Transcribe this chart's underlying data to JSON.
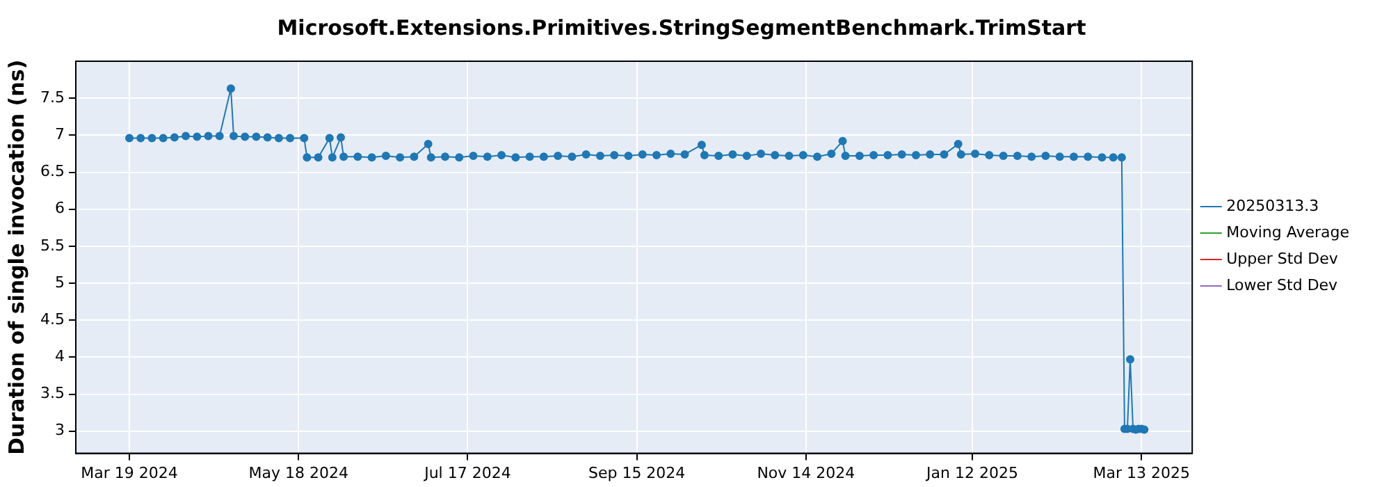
{
  "chart_data": {
    "type": "line",
    "title": "Microsoft.Extensions.Primitives.StringSegmentBenchmark.TrimStart",
    "ylabel": "Duration of single invocation (ns)",
    "x": [
      "2024-03-19",
      "2024-03-23",
      "2024-03-27",
      "2024-03-31",
      "2024-04-04",
      "2024-04-08",
      "2024-04-12",
      "2024-04-16",
      "2024-04-20",
      "2024-04-24",
      "2024-04-25",
      "2024-04-29",
      "2024-05-03",
      "2024-05-07",
      "2024-05-11",
      "2024-05-15",
      "2024-05-20",
      "2024-05-21",
      "2024-05-25",
      "2024-05-29",
      "2024-05-30",
      "2024-06-02",
      "2024-06-03",
      "2024-06-08",
      "2024-06-13",
      "2024-06-18",
      "2024-06-23",
      "2024-06-28",
      "2024-07-03",
      "2024-07-04",
      "2024-07-09",
      "2024-07-14",
      "2024-07-19",
      "2024-07-24",
      "2024-07-29",
      "2024-08-03",
      "2024-08-08",
      "2024-08-13",
      "2024-08-18",
      "2024-08-23",
      "2024-08-28",
      "2024-09-02",
      "2024-09-07",
      "2024-09-12",
      "2024-09-17",
      "2024-09-22",
      "2024-09-27",
      "2024-10-02",
      "2024-10-08",
      "2024-10-09",
      "2024-10-14",
      "2024-10-19",
      "2024-10-24",
      "2024-10-29",
      "2024-11-03",
      "2024-11-08",
      "2024-11-13",
      "2024-11-18",
      "2024-11-23",
      "2024-11-27",
      "2024-11-28",
      "2024-12-03",
      "2024-12-08",
      "2024-12-13",
      "2024-12-18",
      "2024-12-23",
      "2024-12-28",
      "2025-01-02",
      "2025-01-07",
      "2025-01-08",
      "2025-01-13",
      "2025-01-18",
      "2025-01-23",
      "2025-01-28",
      "2025-02-02",
      "2025-02-07",
      "2025-02-12",
      "2025-02-17",
      "2025-02-22",
      "2025-02-27",
      "2025-03-03",
      "2025-03-06",
      "2025-03-07",
      "2025-03-08",
      "2025-03-09",
      "2025-03-10",
      "2025-03-11",
      "2025-03-12",
      "2025-03-13",
      "2025-03-14"
    ],
    "series": [
      {
        "name": "20250313.3",
        "color": "#1f77b4",
        "values": [
          6.96,
          6.96,
          6.96,
          6.96,
          6.97,
          6.99,
          6.98,
          6.99,
          6.99,
          7.63,
          6.99,
          6.98,
          6.98,
          6.97,
          6.96,
          6.96,
          6.96,
          6.7,
          6.7,
          6.96,
          6.7,
          6.97,
          6.71,
          6.71,
          6.7,
          6.72,
          6.7,
          6.71,
          6.88,
          6.7,
          6.71,
          6.7,
          6.72,
          6.71,
          6.73,
          6.7,
          6.71,
          6.71,
          6.72,
          6.71,
          6.74,
          6.72,
          6.73,
          6.72,
          6.74,
          6.73,
          6.75,
          6.74,
          6.87,
          6.73,
          6.72,
          6.74,
          6.72,
          6.75,
          6.73,
          6.72,
          6.73,
          6.71,
          6.75,
          6.92,
          6.72,
          6.72,
          6.73,
          6.73,
          6.74,
          6.73,
          6.74,
          6.74,
          6.88,
          6.74,
          6.75,
          6.73,
          6.72,
          6.72,
          6.71,
          6.72,
          6.71,
          6.71,
          6.71,
          6.7,
          6.7,
          6.7,
          3.03,
          3.03,
          3.97,
          3.03,
          3.02,
          3.03,
          3.03,
          3.02
        ]
      },
      {
        "name": "Moving Average",
        "color": "#2ca02c",
        "values": [
          null,
          null,
          null,
          null,
          null,
          null,
          null,
          null,
          null,
          null,
          null,
          null,
          null,
          null,
          null,
          null,
          null,
          null,
          null,
          null,
          null,
          null,
          null,
          null,
          null,
          null,
          null,
          null,
          null,
          null,
          null,
          null,
          null,
          null,
          null,
          null,
          null,
          null,
          null,
          null,
          null,
          null,
          null,
          null,
          null,
          null,
          null,
          null,
          null,
          null,
          null,
          null,
          null,
          null,
          null,
          null,
          null,
          null,
          null,
          null,
          null,
          null,
          null,
          null,
          null,
          null,
          null,
          null,
          null,
          null,
          null,
          null,
          null,
          null,
          null,
          null,
          null,
          null,
          null,
          null,
          null,
          null,
          null,
          null,
          null,
          null,
          null,
          null,
          null,
          null
        ]
      },
      {
        "name": "Upper Std Dev",
        "color": "#d62728",
        "values": [
          null,
          null,
          null,
          null,
          null,
          null,
          null,
          null,
          null,
          null,
          null,
          null,
          null,
          null,
          null,
          null,
          null,
          null,
          null,
          null,
          null,
          null,
          null,
          null,
          null,
          null,
          null,
          null,
          null,
          null,
          null,
          null,
          null,
          null,
          null,
          null,
          null,
          null,
          null,
          null,
          null,
          null,
          null,
          null,
          null,
          null,
          null,
          null,
          null,
          null,
          null,
          null,
          null,
          null,
          null,
          null,
          null,
          null,
          null,
          null,
          null,
          null,
          null,
          null,
          null,
          null,
          null,
          null,
          null,
          null,
          null,
          null,
          null,
          null,
          null,
          null,
          null,
          null,
          null,
          null,
          null,
          null,
          null,
          null,
          null,
          null,
          null,
          null,
          null,
          null
        ]
      },
      {
        "name": "Lower Std Dev",
        "color": "#9467bd",
        "values": [
          null,
          null,
          null,
          null,
          null,
          null,
          null,
          null,
          null,
          null,
          null,
          null,
          null,
          null,
          null,
          null,
          null,
          null,
          null,
          null,
          null,
          null,
          null,
          null,
          null,
          null,
          null,
          null,
          null,
          null,
          null,
          null,
          null,
          null,
          null,
          null,
          null,
          null,
          null,
          null,
          null,
          null,
          null,
          null,
          null,
          null,
          null,
          null,
          null,
          null,
          null,
          null,
          null,
          null,
          null,
          null,
          null,
          null,
          null,
          null,
          null,
          null,
          null,
          null,
          null,
          null,
          null,
          null,
          null,
          null,
          null,
          null,
          null,
          null,
          null,
          null,
          null,
          null,
          null,
          null,
          null,
          null,
          null,
          null,
          null,
          null,
          null,
          null,
          null,
          null
        ]
      }
    ],
    "xlim": [
      "2024-02-29",
      "2025-03-31"
    ],
    "xticks": [
      {
        "value": "2024-03-19",
        "label": "Mar 19 2024"
      },
      {
        "value": "2024-05-18",
        "label": "May 18 2024"
      },
      {
        "value": "2024-07-17",
        "label": "Jul 17 2024"
      },
      {
        "value": "2024-09-15",
        "label": "Sep 15 2024"
      },
      {
        "value": "2024-11-14",
        "label": "Nov 14 2024"
      },
      {
        "value": "2025-01-12",
        "label": "Jan 12 2025"
      },
      {
        "value": "2025-03-13",
        "label": "Mar 13 2025"
      }
    ],
    "ylim": [
      2.7,
      8
    ],
    "yticks": [
      3,
      3.5,
      4,
      4.5,
      5,
      5.5,
      6,
      6.5,
      7,
      7.5
    ],
    "grid": true,
    "legend": "right",
    "marker": "circle",
    "line_style": "solid"
  }
}
